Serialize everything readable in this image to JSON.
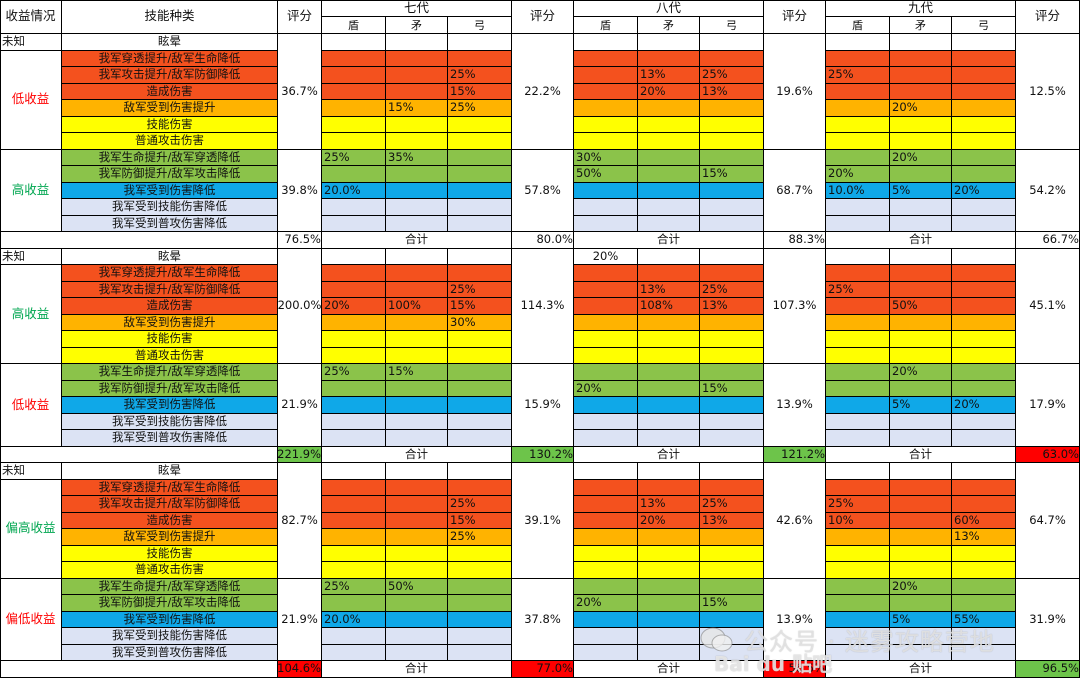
{
  "header": {
    "benefit": "收益情况",
    "skill_type": "技能种类",
    "score": "评分",
    "generations": [
      {
        "name": "七代",
        "cols": [
          "盾",
          "矛",
          "弓"
        ]
      },
      {
        "name": "八代",
        "cols": [
          "盾",
          "矛",
          "弓"
        ]
      },
      {
        "name": "九代",
        "cols": [
          "盾",
          "矛",
          "弓"
        ]
      }
    ]
  },
  "total_label": "合计",
  "colors": {
    "red": "#f4511e",
    "orange": "#ffb300",
    "yellow": "#ffff00",
    "green": "#8bc34a",
    "blue": "#0fa8e8",
    "light": "#dce3f4",
    "total_red": "#ff0000",
    "total_green": "#6dc44a",
    "text_red": "#ff0000",
    "text_green": "#00a650"
  },
  "sections": [
    {
      "unknown_label": "未知",
      "unknown_skill": "眩晕",
      "unknown_values": [
        [
          "",
          "",
          ""
        ],
        [
          "",
          "",
          ""
        ],
        [
          "",
          "",
          ""
        ]
      ],
      "groups": [
        {
          "label": "低收益",
          "label_color": "red",
          "scores": [
            "36.7%",
            "22.2%",
            "19.6%",
            "12.5%"
          ],
          "rows": [
            {
              "skill": "我军穿透提升/敌军生命降低",
              "color": "red",
              "values": [
                [
                  "",
                  "",
                  ""
                ],
                [
                  "",
                  "",
                  ""
                ],
                [
                  "",
                  "",
                  ""
                ]
              ]
            },
            {
              "skill": "我军攻击提升/敌军防御降低",
              "color": "red",
              "values": [
                [
                  "",
                  "",
                  "25%"
                ],
                [
                  "",
                  "13%",
                  "25%"
                ],
                [
                  "25%",
                  "",
                  ""
                ]
              ]
            },
            {
              "skill": "造成伤害",
              "color": "red",
              "values": [
                [
                  "",
                  "",
                  "15%"
                ],
                [
                  "",
                  "20%",
                  "13%"
                ],
                [
                  "",
                  "",
                  ""
                ]
              ]
            },
            {
              "skill": "敌军受到伤害提升",
              "color": "orange",
              "values": [
                [
                  "",
                  "15%",
                  "25%"
                ],
                [
                  "",
                  "",
                  ""
                ],
                [
                  "",
                  "20%",
                  ""
                ]
              ]
            },
            {
              "skill": "技能伤害",
              "color": "yellow",
              "values": [
                [
                  "",
                  "",
                  ""
                ],
                [
                  "",
                  "",
                  ""
                ],
                [
                  "",
                  "",
                  ""
                ]
              ]
            },
            {
              "skill": "普通攻击伤害",
              "color": "yellow",
              "values": [
                [
                  "",
                  "",
                  ""
                ],
                [
                  "",
                  "",
                  ""
                ],
                [
                  "",
                  "",
                  ""
                ]
              ]
            }
          ]
        },
        {
          "label": "高收益",
          "label_color": "green",
          "scores": [
            "39.8%",
            "57.8%",
            "68.7%",
            "54.2%"
          ],
          "rows": [
            {
              "skill": "我军生命提升/敌军穿透降低",
              "color": "green",
              "values": [
                [
                  "25%",
                  "35%",
                  ""
                ],
                [
                  "30%",
                  "",
                  ""
                ],
                [
                  "",
                  "20%",
                  ""
                ]
              ]
            },
            {
              "skill": "我军防御提升/敌军攻击降低",
              "color": "green",
              "values": [
                [
                  "",
                  "",
                  ""
                ],
                [
                  "50%",
                  "",
                  "15%"
                ],
                [
                  "20%",
                  "",
                  ""
                ]
              ]
            },
            {
              "skill": "我军受到伤害降低",
              "color": "blue",
              "values": [
                [
                  "20.0%",
                  "",
                  ""
                ],
                [
                  "",
                  "",
                  ""
                ],
                [
                  "10.0%",
                  "5%",
                  "20%"
                ]
              ]
            },
            {
              "skill": "我军受到技能伤害降低",
              "color": "light",
              "values": [
                [
                  "",
                  "",
                  ""
                ],
                [
                  "",
                  "",
                  ""
                ],
                [
                  "",
                  "",
                  ""
                ]
              ]
            },
            {
              "skill": "我军受到普攻伤害降低",
              "color": "light",
              "values": [
                [
                  "",
                  "",
                  ""
                ],
                [
                  "",
                  "",
                  ""
                ],
                [
                  "",
                  "",
                  ""
                ]
              ]
            }
          ]
        }
      ],
      "totals": [
        {
          "value": "76.5%",
          "color": "none"
        },
        {
          "value": "80.0%",
          "color": "none"
        },
        {
          "value": "88.3%",
          "color": "none"
        },
        {
          "value": "66.7%",
          "color": "none"
        }
      ]
    },
    {
      "unknown_label": "未知",
      "unknown_skill": "眩晕",
      "unknown_values": [
        [
          "",
          "",
          ""
        ],
        [
          "20%",
          "",
          ""
        ],
        [
          "",
          "",
          ""
        ]
      ],
      "groups": [
        {
          "label": "高收益",
          "label_color": "green",
          "scores": [
            "200.0%",
            "114.3%",
            "107.3%",
            "45.1%"
          ],
          "rows": [
            {
              "skill": "我军穿透提升/敌军生命降低",
              "color": "red",
              "values": [
                [
                  "",
                  "",
                  ""
                ],
                [
                  "",
                  "",
                  ""
                ],
                [
                  "",
                  "",
                  ""
                ]
              ]
            },
            {
              "skill": "我军攻击提升/敌军防御降低",
              "color": "red",
              "values": [
                [
                  "",
                  "",
                  "25%"
                ],
                [
                  "",
                  "13%",
                  "25%"
                ],
                [
                  "25%",
                  "",
                  ""
                ]
              ]
            },
            {
              "skill": "造成伤害",
              "color": "red",
              "values": [
                [
                  "20%",
                  "100%",
                  "15%"
                ],
                [
                  "",
                  "108%",
                  "13%"
                ],
                [
                  "",
                  "50%",
                  ""
                ]
              ]
            },
            {
              "skill": "敌军受到伤害提升",
              "color": "orange",
              "values": [
                [
                  "",
                  "",
                  "30%"
                ],
                [
                  "",
                  "",
                  ""
                ],
                [
                  "",
                  "",
                  ""
                ]
              ]
            },
            {
              "skill": "技能伤害",
              "color": "yellow",
              "values": [
                [
                  "",
                  "",
                  ""
                ],
                [
                  "",
                  "",
                  ""
                ],
                [
                  "",
                  "",
                  ""
                ]
              ]
            },
            {
              "skill": "普通攻击伤害",
              "color": "yellow",
              "values": [
                [
                  "",
                  "",
                  ""
                ],
                [
                  "",
                  "",
                  ""
                ],
                [
                  "",
                  "",
                  ""
                ]
              ]
            }
          ]
        },
        {
          "label": "低收益",
          "label_color": "red",
          "scores": [
            "21.9%",
            "15.9%",
            "13.9%",
            "17.9%"
          ],
          "rows": [
            {
              "skill": "我军生命提升/敌军穿透降低",
              "color": "green",
              "values": [
                [
                  "25%",
                  "15%",
                  ""
                ],
                [
                  "",
                  "",
                  ""
                ],
                [
                  "",
                  "20%",
                  ""
                ]
              ]
            },
            {
              "skill": "我军防御提升/敌军攻击降低",
              "color": "green",
              "values": [
                [
                  "",
                  "",
                  ""
                ],
                [
                  "20%",
                  "",
                  "15%"
                ],
                [
                  "",
                  "",
                  ""
                ]
              ]
            },
            {
              "skill": "我军受到伤害降低",
              "color": "blue",
              "values": [
                [
                  "",
                  "",
                  ""
                ],
                [
                  "",
                  "",
                  ""
                ],
                [
                  "",
                  "5%",
                  "20%"
                ]
              ]
            },
            {
              "skill": "我军受到技能伤害降低",
              "color": "light",
              "values": [
                [
                  "",
                  "",
                  ""
                ],
                [
                  "",
                  "",
                  ""
                ],
                [
                  "",
                  "",
                  ""
                ]
              ]
            },
            {
              "skill": "我军受到普攻伤害降低",
              "color": "light",
              "values": [
                [
                  "",
                  "",
                  ""
                ],
                [
                  "",
                  "",
                  ""
                ],
                [
                  "",
                  "",
                  ""
                ]
              ]
            }
          ]
        }
      ],
      "totals": [
        {
          "value": "221.9%",
          "color": "total_green"
        },
        {
          "value": "130.2%",
          "color": "total_green"
        },
        {
          "value": "121.2%",
          "color": "total_green"
        },
        {
          "value": "63.0%",
          "color": "total_red"
        }
      ]
    },
    {
      "unknown_label": "未知",
      "unknown_skill": "眩晕",
      "unknown_values": [
        [
          "",
          "",
          ""
        ],
        [
          "",
          "",
          ""
        ],
        [
          "",
          "",
          ""
        ]
      ],
      "groups": [
        {
          "label": "偏高收益",
          "label_color": "green",
          "scores": [
            "82.7%",
            "39.1%",
            "42.6%",
            "64.7%"
          ],
          "rows": [
            {
              "skill": "我军穿透提升/敌军生命降低",
              "color": "red",
              "values": [
                [
                  "",
                  "",
                  ""
                ],
                [
                  "",
                  "",
                  ""
                ],
                [
                  "",
                  "",
                  ""
                ]
              ]
            },
            {
              "skill": "我军攻击提升/敌军防御降低",
              "color": "red",
              "values": [
                [
                  "",
                  "",
                  "25%"
                ],
                [
                  "",
                  "13%",
                  "25%"
                ],
                [
                  "25%",
                  "",
                  ""
                ]
              ]
            },
            {
              "skill": "造成伤害",
              "color": "red",
              "values": [
                [
                  "",
                  "",
                  "15%"
                ],
                [
                  "",
                  "20%",
                  "13%"
                ],
                [
                  "10%",
                  "",
                  "60%"
                ]
              ]
            },
            {
              "skill": "敌军受到伤害提升",
              "color": "orange",
              "values": [
                [
                  "",
                  "",
                  "25%"
                ],
                [
                  "",
                  "",
                  ""
                ],
                [
                  "",
                  "",
                  "13%"
                ]
              ]
            },
            {
              "skill": "技能伤害",
              "color": "yellow",
              "values": [
                [
                  "",
                  "",
                  ""
                ],
                [
                  "",
                  "",
                  ""
                ],
                [
                  "",
                  "",
                  ""
                ]
              ]
            },
            {
              "skill": "普通攻击伤害",
              "color": "yellow",
              "values": [
                [
                  "",
                  "",
                  ""
                ],
                [
                  "",
                  "",
                  ""
                ],
                [
                  "",
                  "",
                  ""
                ]
              ]
            }
          ]
        },
        {
          "label": "偏低收益",
          "label_color": "red",
          "scores": [
            "21.9%",
            "37.8%",
            "13.9%",
            "31.9%"
          ],
          "rows": [
            {
              "skill": "我军生命提升/敌军穿透降低",
              "color": "green",
              "values": [
                [
                  "25%",
                  "50%",
                  ""
                ],
                [
                  "",
                  "",
                  ""
                ],
                [
                  "",
                  "20%",
                  ""
                ]
              ]
            },
            {
              "skill": "我军防御提升/敌军攻击降低",
              "color": "green",
              "values": [
                [
                  "",
                  "",
                  ""
                ],
                [
                  "20%",
                  "",
                  "15%"
                ],
                [
                  "",
                  "",
                  ""
                ]
              ]
            },
            {
              "skill": "我军受到伤害降低",
              "color": "blue",
              "values": [
                [
                  "20.0%",
                  "",
                  ""
                ],
                [
                  "",
                  "",
                  ""
                ],
                [
                  "",
                  "5%",
                  "55%"
                ]
              ]
            },
            {
              "skill": "我军受到技能伤害降低",
              "color": "light",
              "values": [
                [
                  "",
                  "",
                  ""
                ],
                [
                  "",
                  "",
                  ""
                ],
                [
                  "",
                  "",
                  ""
                ]
              ]
            },
            {
              "skill": "我军受到普攻伤害降低",
              "color": "light",
              "values": [
                [
                  "",
                  "",
                  ""
                ],
                [
                  "",
                  "",
                  ""
                ],
                [
                  "",
                  "",
                  ""
                ]
              ]
            }
          ]
        }
      ],
      "totals": [
        {
          "value": "104.6%",
          "color": "total_red"
        },
        {
          "value": "77.0%",
          "color": "total_red"
        },
        {
          "value": "56.5%",
          "color": "total_red"
        },
        {
          "value": "96.5%",
          "color": "total_green"
        }
      ]
    }
  ],
  "watermark": {
    "line1": "公众号 · 迷雾攻略营地",
    "line2": "Bai du 贴吧"
  }
}
